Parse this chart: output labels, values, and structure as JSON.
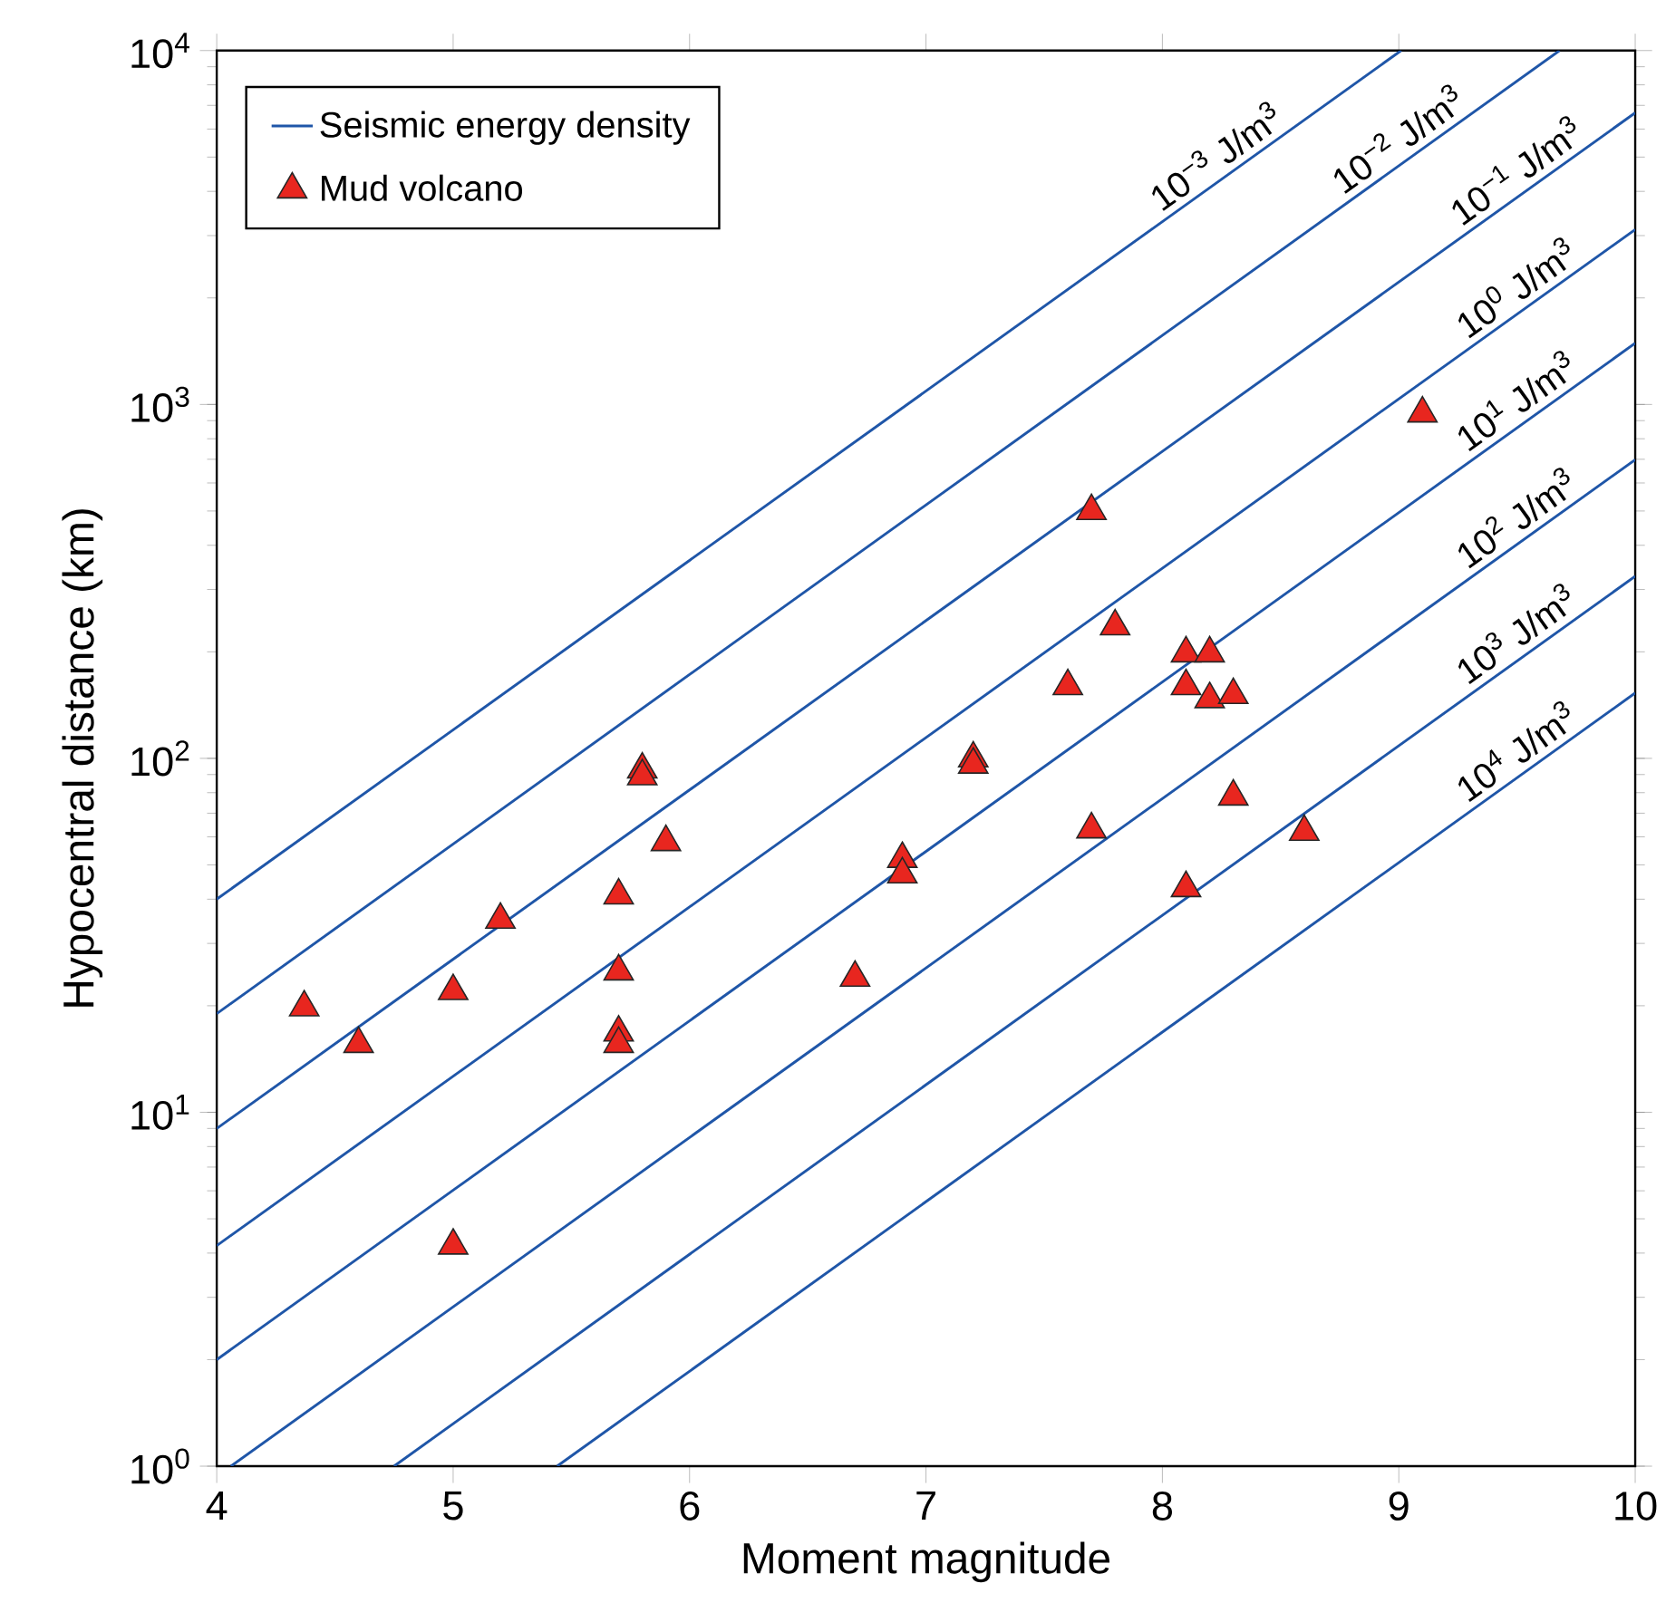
{
  "chart_data": {
    "type": "scatter",
    "xlabel": "Moment magnitude",
    "ylabel": "Hypocentral distance (km)",
    "log": "y",
    "legend": "top left",
    "xlim": [
      4,
      10
    ],
    "xticks": [
      4,
      5,
      6,
      7,
      8,
      9,
      10
    ],
    "ylim": [
      1,
      10000
    ],
    "yticks": [
      {
        "value": 1,
        "label": "10$^{0}$"
      },
      {
        "value": 10,
        "label": "10$^{1}$"
      },
      {
        "value": 100,
        "label": "10$^{2}$"
      },
      {
        "value": 1000,
        "label": "10$^{3}$"
      },
      {
        "value": 10000,
        "label": "10$^{4}$"
      }
    ],
    "series": [
      {
        "type": "line",
        "name": "Seismic energy density",
        "color": "#1f56a8",
        "x": [
          4,
          9.01
        ],
        "values": [
          40,
          10000
        ]
      },
      {
        "type": "line",
        "color": "#1f56a8",
        "x": [
          4,
          9.68
        ],
        "values": [
          19,
          10000
        ]
      },
      {
        "type": "line",
        "color": "#1f56a8",
        "x": [
          4,
          10
        ],
        "values": [
          9,
          6670
        ]
      },
      {
        "type": "line",
        "color": "#1f56a8",
        "x": [
          4,
          10
        ],
        "values": [
          4.2,
          3120
        ]
      },
      {
        "type": "line",
        "color": "#1f56a8",
        "x": [
          4,
          10
        ],
        "values": [
          2,
          1490
        ]
      },
      {
        "type": "line",
        "color": "#1f56a8",
        "x": [
          4.06,
          10
        ],
        "values": [
          1,
          698
        ]
      },
      {
        "type": "line",
        "color": "#1f56a8",
        "x": [
          4.75,
          10
        ],
        "values": [
          1,
          327
        ]
      },
      {
        "type": "line",
        "color": "#1f56a8",
        "x": [
          5.44,
          10
        ],
        "values": [
          1,
          153
        ]
      },
      {
        "name": "Mud volcano",
        "color": "#e8261f",
        "marker": "triangle",
        "x": [
          4.37,
          4.6,
          5.0,
          5.0,
          5.2,
          5.7,
          5.7,
          5.7,
          5.7,
          5.8,
          5.8,
          5.9,
          6.7,
          6.9,
          6.9,
          7.2,
          7.2,
          7.6,
          7.7,
          7.7,
          7.8,
          8.1,
          8.1,
          8.1,
          8.2,
          8.2,
          8.3,
          8.3,
          8.6,
          9.1
        ],
        "values": [
          19.8,
          15.6,
          22,
          4.2,
          35,
          41,
          25,
          16.8,
          15.6,
          93,
          89,
          58,
          24,
          52,
          47,
          100,
          96,
          160,
          500,
          63,
          236,
          198,
          160,
          43,
          198,
          147,
          151,
          78,
          62,
          943
        ]
      }
    ],
    "annotations": [
      {
        "text": "10$^{−3}$ J/m$^{3}$",
        "x": 8.28,
        "y": 4470
      },
      {
        "text": "10$^{−2}$ J/m$^{3}$",
        "x": 9.05,
        "y": 5000
      },
      {
        "text": "10$^{−1}$ J/m$^{3}$",
        "x": 9.55,
        "y": 4070
      },
      {
        "text": "10$^{0}$ J/m$^{3}$",
        "x": 9.55,
        "y": 1900
      },
      {
        "text": "10$^{1}$ J/m$^{3}$",
        "x": 9.55,
        "y": 910
      },
      {
        "text": "10$^{2}$ J/m$^{3}$",
        "x": 9.55,
        "y": 425
      },
      {
        "text": "10$^{3}$ J/m$^{3}$",
        "x": 9.55,
        "y": 200
      },
      {
        "text": "10$^{4}$ J/m$^{3}$",
        "x": 9.55,
        "y": 93
      }
    ]
  }
}
